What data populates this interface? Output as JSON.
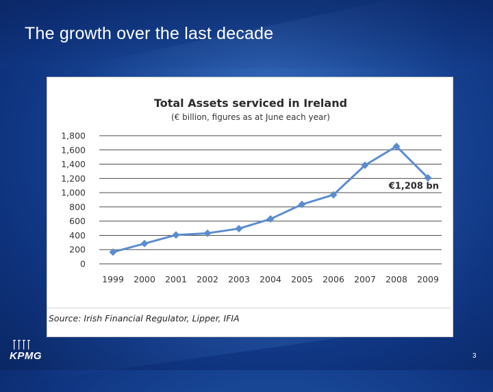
{
  "slide": {
    "title": "The growth over the last decade",
    "page_number": "3",
    "logo_text": "KPMG"
  },
  "source_note": "Source: Irish Financial Regulator, Lipper, IFIA",
  "colors": {
    "series": "#5b8ccf",
    "gridline": "#4a4a4a",
    "text": "#333333"
  },
  "chart_data": {
    "type": "line",
    "title": "Total Assets serviced in Ireland",
    "subtitle": "(€ billion, figures as at June each year)",
    "xlabel": "",
    "ylabel": "",
    "categories": [
      "1999",
      "2000",
      "2001",
      "2002",
      "2003",
      "2004",
      "2005",
      "2006",
      "2007",
      "2008",
      "2009"
    ],
    "values": [
      165,
      285,
      405,
      430,
      495,
      630,
      835,
      970,
      1385,
      1650,
      1208
    ],
    "ylim": [
      0,
      1800
    ],
    "yticks": [
      0,
      200,
      400,
      600,
      800,
      1000,
      1200,
      1400,
      1600,
      1800
    ],
    "ytick_labels": [
      "0",
      "200",
      "400",
      "600",
      "800",
      "1,000",
      "1,200",
      "1,400",
      "1,600",
      "1,800"
    ],
    "grid": true,
    "legend": "none",
    "annotations": [
      {
        "category": "2009",
        "text": "€1,208 bn"
      }
    ]
  }
}
